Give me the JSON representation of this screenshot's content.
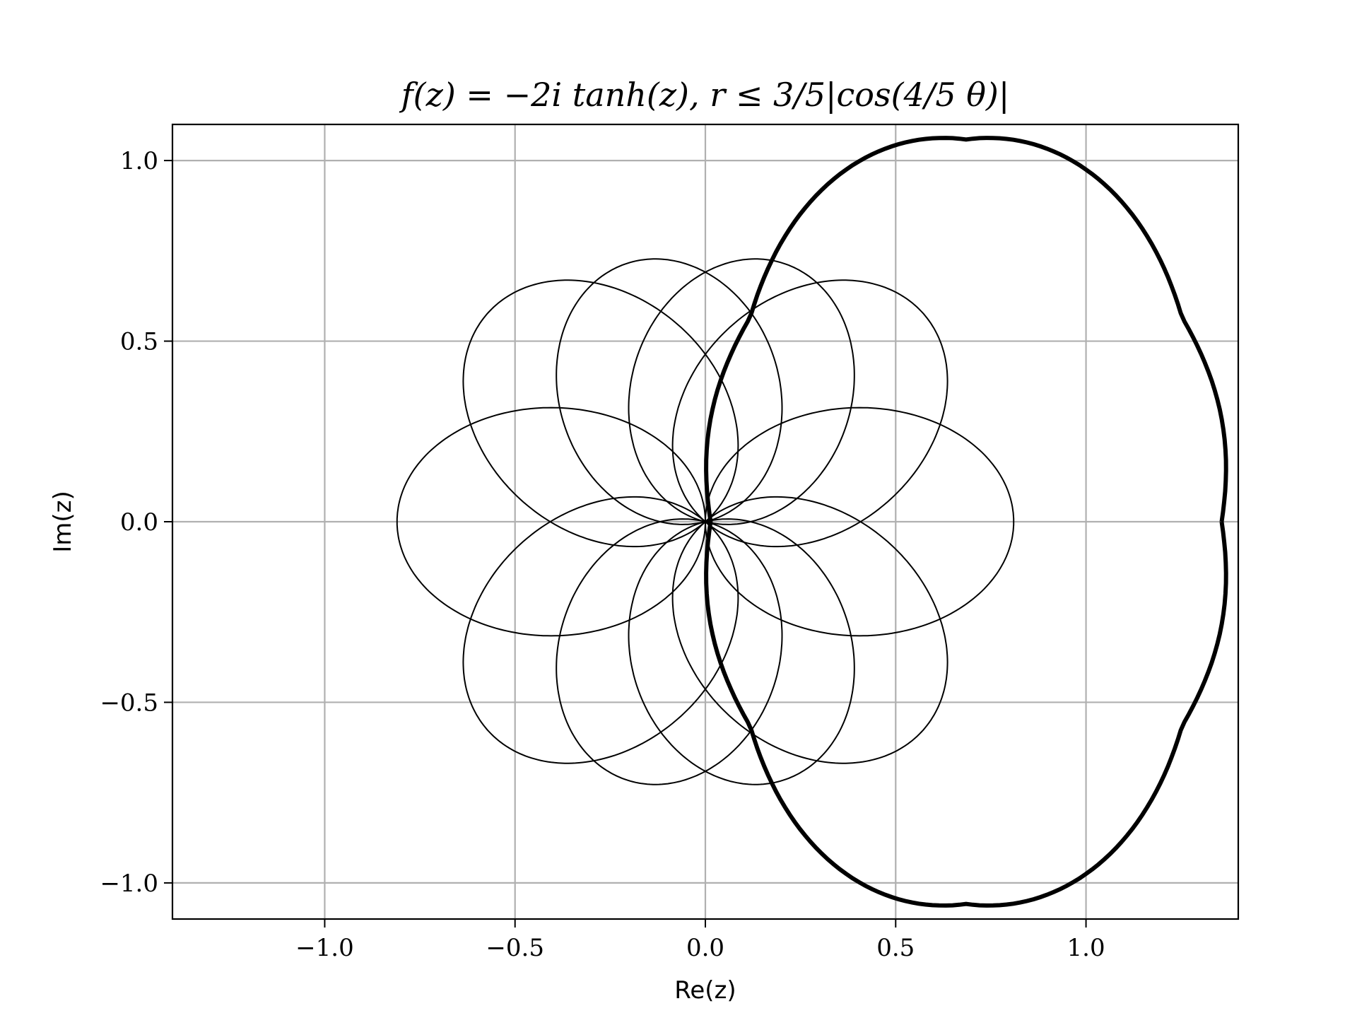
{
  "chart_data": {
    "type": "line",
    "title": "f(z) = −2i tanh(z),  r ≤ 3/5|cos(4/5 θ)|",
    "xlabel": "Re(z)",
    "ylabel": "Im(z)",
    "xlim": [
      -1.4,
      1.4
    ],
    "ylim": [
      -1.1,
      1.1
    ],
    "xticks": [
      -1.0,
      -0.5,
      0.0,
      0.5,
      1.0
    ],
    "yticks": [
      -1.0,
      -0.5,
      0.0,
      0.5,
      1.0
    ],
    "xtick_labels": [
      "−1.0",
      "−0.5",
      "0.0",
      "0.5",
      "1.0"
    ],
    "ytick_labels": [
      "−1.0",
      "−0.5",
      "0.0",
      "0.5",
      "1.0"
    ],
    "grid": true,
    "line_color": "#000000",
    "grid_color": "#b0b0b0",
    "series": [
      {
        "x": [
          0.0,
          0.81
        ],
        "y": [
          0.0,
          0.0
        ]
      },
      {
        "x": [
          0.0,
          0.55
        ],
        "y": [
          0.0,
          0.6
        ]
      },
      {
        "x": [
          0.0,
          0.19
        ],
        "y": [
          0.0,
          0.72
        ]
      },
      {
        "x": [
          0.0,
          -0.19
        ],
        "y": [
          0.0,
          0.72
        ]
      },
      {
        "x": [
          0.0,
          -0.55
        ],
        "y": [
          0.0,
          0.6
        ]
      },
      {
        "x": [
          0.0,
          -0.81
        ],
        "y": [
          0.0,
          0.0
        ]
      },
      {
        "x": [
          0.0,
          -0.55
        ],
        "y": [
          0.0,
          -0.6
        ]
      },
      {
        "x": [
          0.0,
          -0.19
        ],
        "y": [
          0.0,
          -0.72
        ]
      },
      {
        "x": [
          0.0,
          0.19
        ],
        "y": [
          0.0,
          -0.72
        ]
      },
      {
        "x": [
          0.0,
          0.55
        ],
        "y": [
          0.0,
          -0.6
        ]
      },
      {
        "x": [
          0.0,
          1.37
        ],
        "y": [
          0.0,
          0.0
        ]
      }
    ]
  }
}
